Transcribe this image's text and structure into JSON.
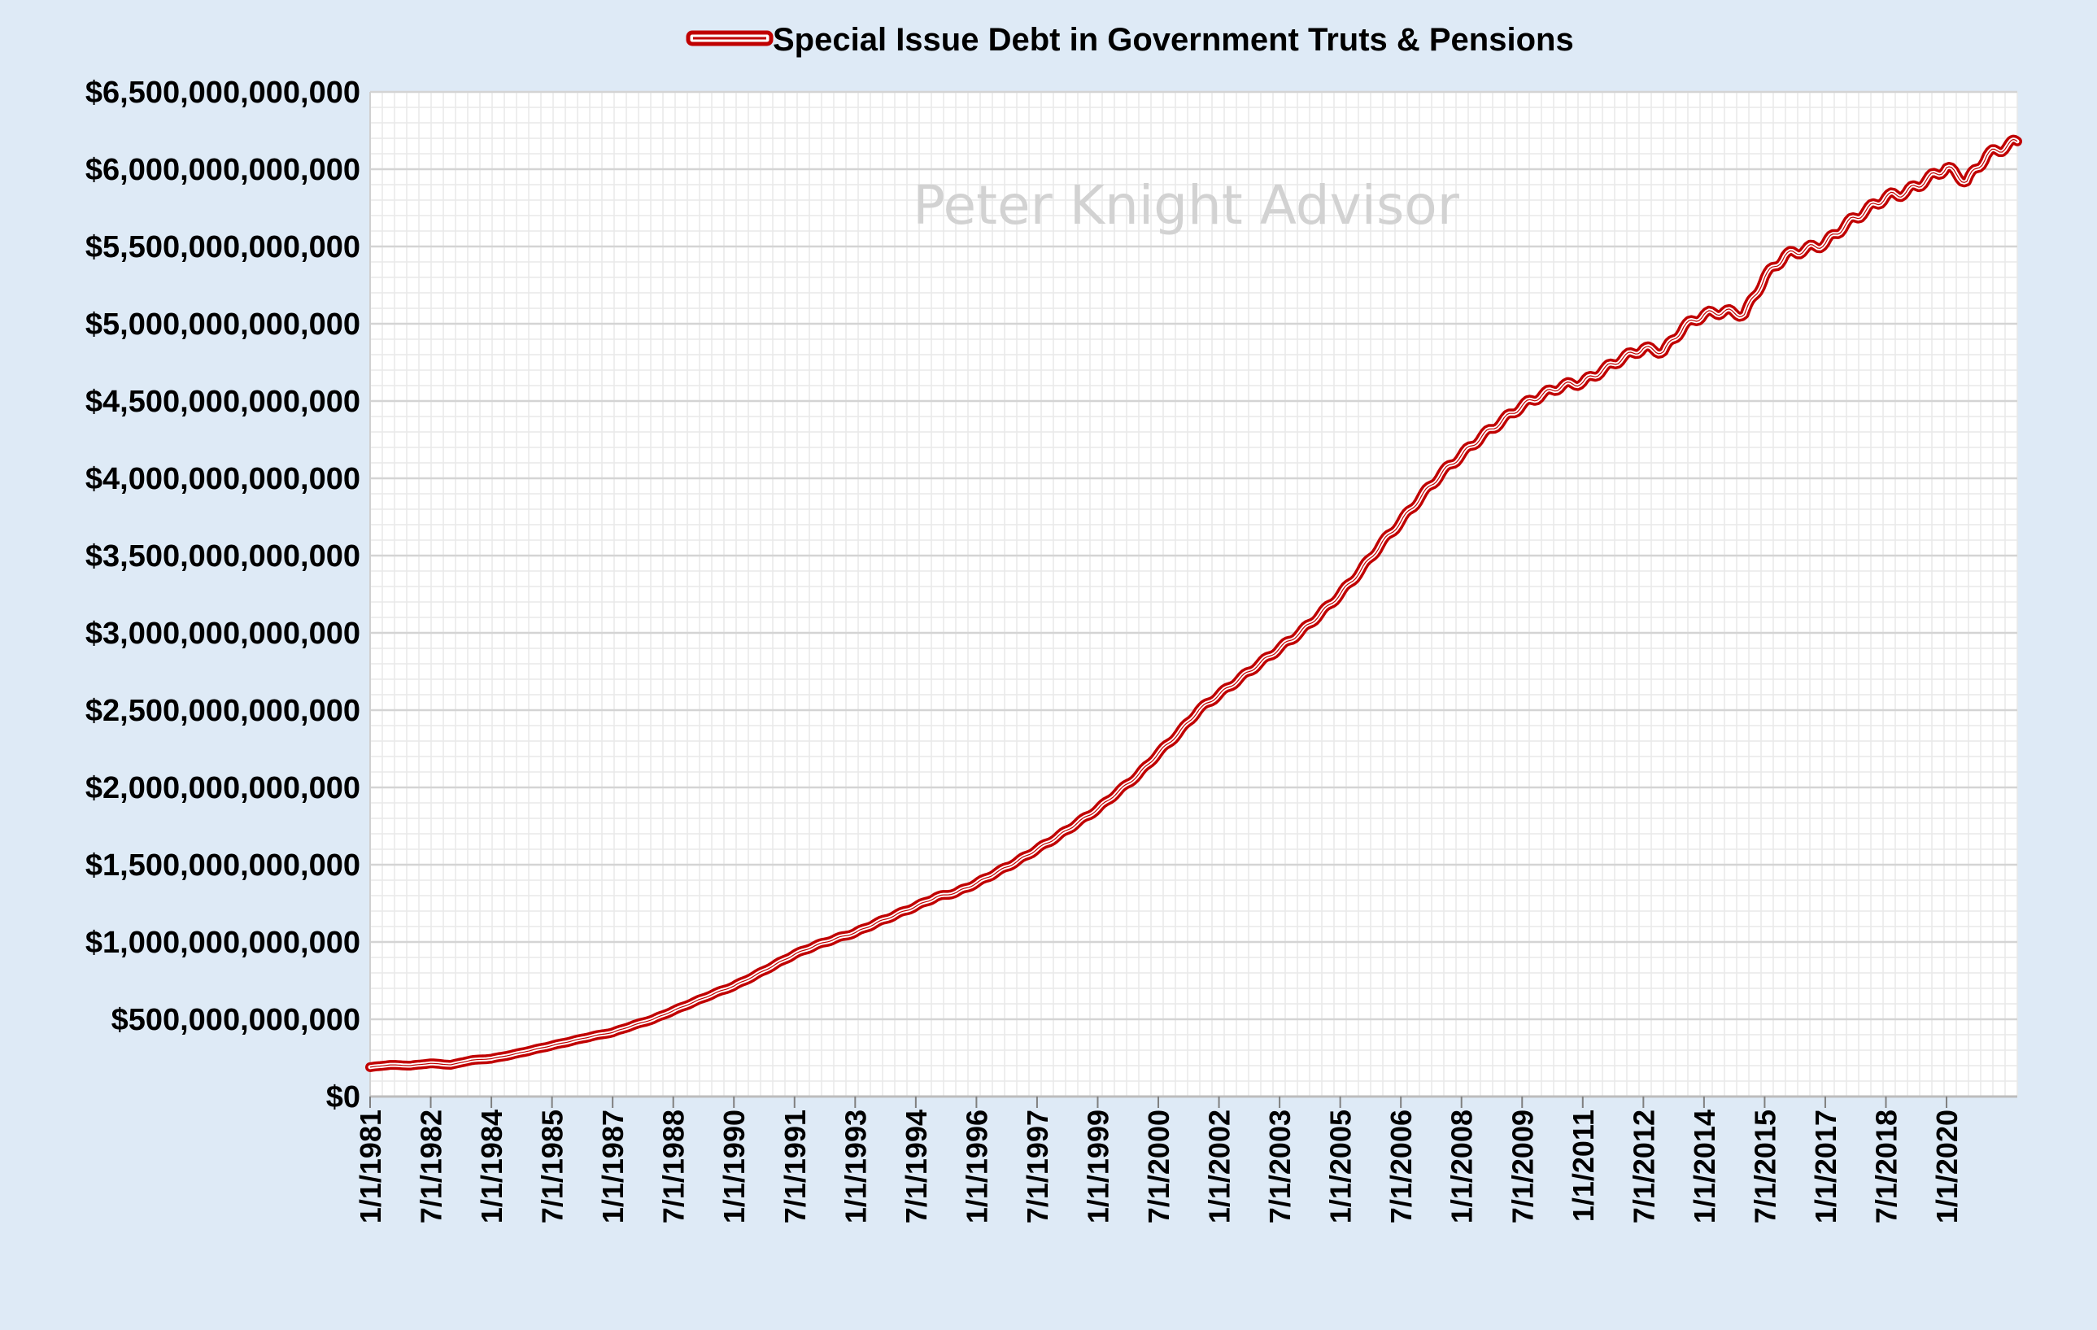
{
  "chart_data": {
    "type": "line",
    "title": "",
    "watermark": "Peter Knight Advisor",
    "legend": [
      "Special Issue Debt in Government Truts &  Pensions"
    ],
    "legend_position": "top-center",
    "xlabel": "",
    "ylabel": "",
    "ylim": [
      0,
      6500000000000
    ],
    "yticks": [
      0,
      500000000000,
      1000000000000,
      1500000000000,
      2000000000000,
      2500000000000,
      3000000000000,
      3500000000000,
      4000000000000,
      4500000000000,
      5000000000000,
      5500000000000,
      6000000000000,
      6500000000000
    ],
    "ytick_labels": [
      "$0",
      "$500,000,000,000",
      "$1,000,000,000,000",
      "$1,500,000,000,000",
      "$2,000,000,000,000",
      "$2,500,000,000,000",
      "$3,000,000,000,000",
      "$3,500,000,000,000",
      "$4,000,000,000,000",
      "$4,500,000,000,000",
      "$5,000,000,000,000",
      "$5,500,000,000,000",
      "$6,000,000,000,000",
      "$6,500,000,000,000"
    ],
    "xlim": [
      1981.0,
      2021.75
    ],
    "xtick_values": [
      1981.0,
      1982.5,
      1984.0,
      1985.5,
      1987.0,
      1988.5,
      1990.0,
      1991.5,
      1993.0,
      1994.5,
      1996.0,
      1997.5,
      1999.0,
      2000.5,
      2002.0,
      2003.5,
      2005.0,
      2006.5,
      2008.0,
      2009.5,
      2011.0,
      2012.5,
      2014.0,
      2015.5,
      2017.0,
      2018.5,
      2020.0
    ],
    "xtick_labels": [
      "1/1/1981",
      "7/1/1982",
      "1/1/1984",
      "7/1/1985",
      "1/1/1987",
      "7/1/1988",
      "1/1/1990",
      "7/1/1991",
      "1/1/1993",
      "7/1/1994",
      "1/1/1996",
      "7/1/1997",
      "1/1/1999",
      "7/1/2000",
      "1/1/2002",
      "7/1/2003",
      "1/1/2005",
      "7/1/2006",
      "1/1/2008",
      "7/1/2009",
      "1/1/2011",
      "7/1/2012",
      "1/1/2014",
      "7/1/2015",
      "1/1/2017",
      "7/1/2018",
      "1/1/2020"
    ],
    "grid": true,
    "minor_grid": true,
    "series": [
      {
        "name": "Special Issue Debt in Government Truts &  Pensions",
        "color": "#c00000",
        "x": [
          1981.0,
          1981.5,
          1982.0,
          1982.5,
          1983.0,
          1983.5,
          1984.0,
          1984.5,
          1985.0,
          1985.5,
          1986.0,
          1986.5,
          1987.0,
          1987.5,
          1988.0,
          1988.5,
          1989.0,
          1989.5,
          1990.0,
          1990.5,
          1991.0,
          1991.5,
          1992.0,
          1992.5,
          1993.0,
          1993.5,
          1994.0,
          1994.5,
          1995.0,
          1995.5,
          1996.0,
          1996.5,
          1997.0,
          1997.5,
          1998.0,
          1998.5,
          1999.0,
          1999.5,
          2000.0,
          2000.5,
          2001.0,
          2001.5,
          2002.0,
          2002.5,
          2003.0,
          2003.5,
          2004.0,
          2004.5,
          2005.0,
          2005.5,
          2006.0,
          2006.5,
          2007.0,
          2007.5,
          2008.0,
          2008.5,
          2009.0,
          2009.5,
          2010.0,
          2010.5,
          2011.0,
          2011.5,
          2012.0,
          2012.5,
          2013.0,
          2013.5,
          2014.0,
          2014.5,
          2015.0,
          2015.25,
          2015.5,
          2016.0,
          2016.5,
          2017.0,
          2017.5,
          2018.0,
          2018.5,
          2019.0,
          2019.5,
          2020.0,
          2020.5,
          2021.0,
          2021.5,
          2021.75
        ],
        "values": [
          190000000000,
          205000000000,
          200000000000,
          215000000000,
          205000000000,
          235000000000,
          245000000000,
          270000000000,
          300000000000,
          330000000000,
          360000000000,
          390000000000,
          415000000000,
          460000000000,
          500000000000,
          555000000000,
          610000000000,
          665000000000,
          715000000000,
          780000000000,
          850000000000,
          920000000000,
          975000000000,
          1020000000000,
          1060000000000,
          1120000000000,
          1175000000000,
          1230000000000,
          1290000000000,
          1320000000000,
          1380000000000,
          1450000000000,
          1520000000000,
          1600000000000,
          1680000000000,
          1770000000000,
          1860000000000,
          1970000000000,
          2080000000000,
          2220000000000,
          2350000000000,
          2500000000000,
          2600000000000,
          2700000000000,
          2800000000000,
          2900000000000,
          3000000000000,
          3120000000000,
          3250000000000,
          3400000000000,
          3570000000000,
          3720000000000,
          3880000000000,
          4030000000000,
          4150000000000,
          4270000000000,
          4370000000000,
          4470000000000,
          4540000000000,
          4600000000000,
          4620000000000,
          4700000000000,
          4780000000000,
          4840000000000,
          4820000000000,
          4980000000000,
          5060000000000,
          5080000000000,
          5060000000000,
          5180000000000,
          5300000000000,
          5440000000000,
          5480000000000,
          5520000000000,
          5640000000000,
          5730000000000,
          5820000000000,
          5850000000000,
          5930000000000,
          6010000000000,
          5920000000000,
          6090000000000,
          6150000000000,
          6180000000000
        ]
      }
    ]
  }
}
